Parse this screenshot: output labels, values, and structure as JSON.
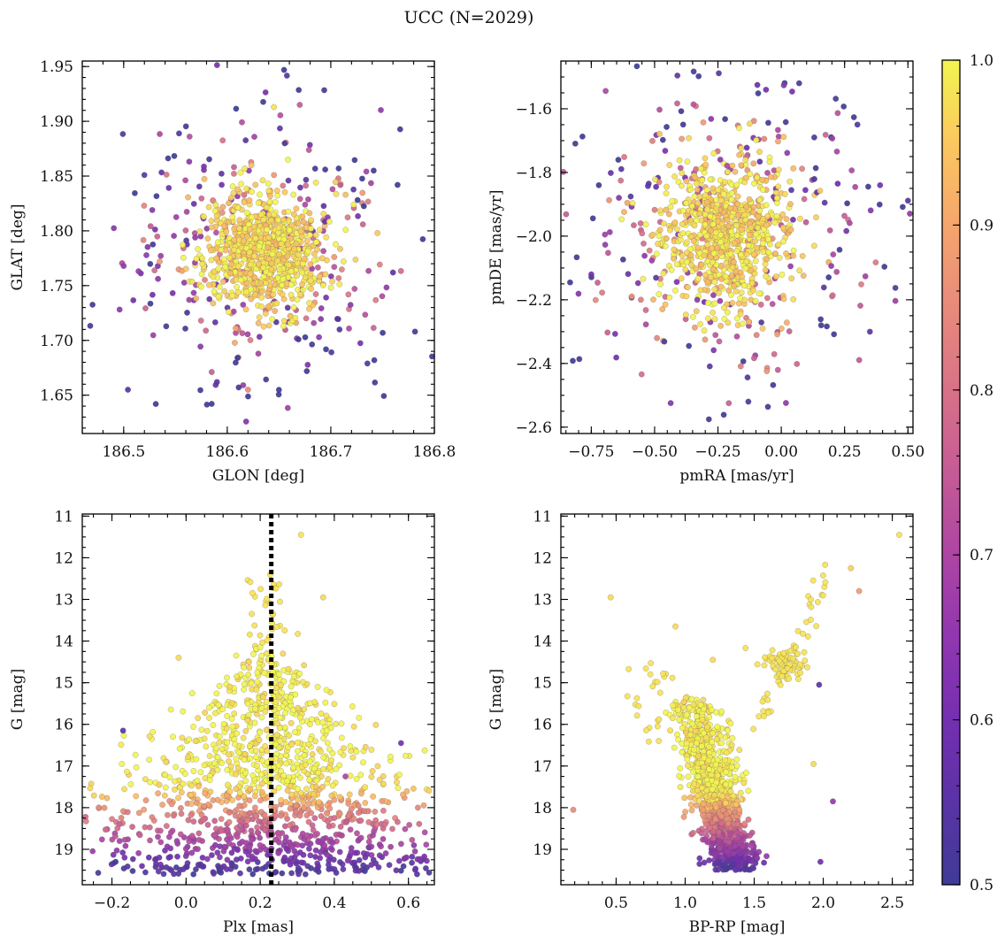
{
  "figure": {
    "title": "UCC (N=2029)",
    "colormap": "plasma",
    "n_members": 2029
  },
  "colorbar": {
    "min": 0.5,
    "max": 1.0,
    "ticks": [
      0.5,
      0.6,
      0.7,
      0.8,
      0.9,
      1.0
    ],
    "tick_labels": [
      "0.5",
      "0.6",
      "0.7",
      "0.8",
      "0.9",
      "1.0"
    ]
  },
  "chart_data": [
    {
      "id": "glon-glat",
      "type": "scatter",
      "title": "",
      "xlabel": "GLON [deg]",
      "ylabel": "GLAT [deg]",
      "xlim": [
        186.46,
        186.8
      ],
      "ylim": [
        1.615,
        1.955
      ],
      "xticks": [
        186.5,
        186.6,
        186.7,
        186.8
      ],
      "xtick_labels": [
        "186.5",
        "186.6",
        "186.7",
        "186.8"
      ],
      "yticks": [
        1.65,
        1.7,
        1.75,
        1.8,
        1.85,
        1.9,
        1.95
      ],
      "ytick_labels": [
        "1.65",
        "1.70",
        "1.75",
        "1.80",
        "1.85",
        "1.90",
        "1.95"
      ],
      "invert_y": false,
      "x_minor_step": 0.02,
      "y_minor_step": 0.01,
      "distribution": {
        "x_center": 186.635,
        "y_center": 1.783,
        "x_spread": 0.035,
        "y_spread": 0.032
      },
      "sample_points": [
        {
          "x": 186.645,
          "y": 1.913,
          "p": 0.98
        },
        {
          "x": 186.67,
          "y": 1.915,
          "p": 0.75
        },
        {
          "x": 186.5,
          "y": 1.768,
          "p": 0.65
        },
        {
          "x": 186.76,
          "y": 1.762,
          "p": 0.55
        },
        {
          "x": 186.59,
          "y": 1.662,
          "p": 0.55
        },
        {
          "x": 186.62,
          "y": 1.655,
          "p": 0.85
        },
        {
          "x": 186.52,
          "y": 1.851,
          "p": 0.55
        },
        {
          "x": 186.745,
          "y": 1.798,
          "p": 0.95
        }
      ]
    },
    {
      "id": "pmra-pmde",
      "type": "scatter",
      "title": "",
      "xlabel": "pmRA [mas/yr]",
      "ylabel": "pmDE [mas/yr]",
      "xlim": [
        -0.87,
        0.52
      ],
      "ylim": [
        -2.62,
        -1.45
      ],
      "xticks": [
        -0.75,
        -0.5,
        -0.25,
        0.0,
        0.25,
        0.5
      ],
      "xtick_labels": [
        "−0.75",
        "−0.50",
        "−0.25",
        "0.00",
        "0.25",
        "0.50"
      ],
      "yticks": [
        -2.6,
        -2.4,
        -2.2,
        -2.0,
        -1.8,
        -1.6
      ],
      "ytick_labels": [
        "−2.6",
        "−2.4",
        "−2.2",
        "−2.0",
        "−1.8",
        "−1.6"
      ],
      "invert_y": false,
      "x_minor_step": 0.05,
      "y_minor_step": 0.05,
      "distribution": {
        "x_center": -0.22,
        "y_center": -2.0,
        "x_spread": 0.16,
        "y_spread": 0.14
      },
      "sample_points": [
        {
          "x": -0.13,
          "y": -2.52,
          "p": 0.52
        },
        {
          "x": -0.06,
          "y": -1.54,
          "p": 0.6
        },
        {
          "x": -0.72,
          "y": -1.84,
          "p": 0.5
        },
        {
          "x": 0.39,
          "y": -1.84,
          "p": 0.6
        },
        {
          "x": 0.35,
          "y": -2.3,
          "p": 0.55
        },
        {
          "x": -0.75,
          "y": -2.12,
          "p": 0.6
        }
      ]
    },
    {
      "id": "plx-g",
      "type": "scatter",
      "title": "",
      "xlabel": "Plx [mas]",
      "ylabel": "G [mag]",
      "xlim": [
        -0.28,
        0.67
      ],
      "ylim": [
        19.85,
        10.95
      ],
      "xticks": [
        -0.2,
        0.0,
        0.2,
        0.4,
        0.6
      ],
      "xtick_labels": [
        "−0.2",
        "0.0",
        "0.2",
        "0.4",
        "0.6"
      ],
      "yticks": [
        11,
        12,
        13,
        14,
        15,
        16,
        17,
        18,
        19
      ],
      "ytick_labels": [
        "11",
        "12",
        "13",
        "14",
        "15",
        "16",
        "17",
        "18",
        "19"
      ],
      "invert_y": true,
      "x_minor_step": 0.05,
      "y_minor_step": 0.25,
      "reference_line": {
        "orientation": "vertical",
        "x": 0.23,
        "style": "dotted"
      },
      "sample_points": [
        {
          "x": 0.31,
          "y": 11.45,
          "p": 0.98
        },
        {
          "x": -0.17,
          "y": 16.15,
          "p": 0.55
        },
        {
          "x": 0.58,
          "y": 16.45,
          "p": 0.6
        },
        {
          "x": -0.02,
          "y": 14.4,
          "p": 0.97
        },
        {
          "x": 0.37,
          "y": 12.95,
          "p": 0.97
        },
        {
          "x": 0.43,
          "y": 17.25,
          "p": 0.7
        },
        {
          "x": 0.02,
          "y": 19.6,
          "p": 0.5
        },
        {
          "x": -0.19,
          "y": 19.3,
          "p": 0.5
        }
      ]
    },
    {
      "id": "bprp-g",
      "type": "scatter",
      "title": "",
      "xlabel": "BP-RP [mag]",
      "ylabel": "G [mag]",
      "xlim": [
        0.1,
        2.65
      ],
      "ylim": [
        19.85,
        10.95
      ],
      "xticks": [
        0.5,
        1.0,
        1.5,
        2.0,
        2.5
      ],
      "xtick_labels": [
        "0.5",
        "1.0",
        "1.5",
        "2.0",
        "2.5"
      ],
      "yticks": [
        11,
        12,
        13,
        14,
        15,
        16,
        17,
        18,
        19
      ],
      "ytick_labels": [
        "11",
        "12",
        "13",
        "14",
        "15",
        "16",
        "17",
        "18",
        "19"
      ],
      "invert_y": true,
      "x_minor_step": 0.1,
      "y_minor_step": 0.25,
      "sample_points": [
        {
          "x": 2.55,
          "y": 11.45,
          "p": 0.98
        },
        {
          "x": 2.2,
          "y": 12.25,
          "p": 0.96
        },
        {
          "x": 2.26,
          "y": 12.8,
          "p": 0.88
        },
        {
          "x": 0.46,
          "y": 12.95,
          "p": 0.97
        },
        {
          "x": 0.19,
          "y": 18.05,
          "p": 0.85
        },
        {
          "x": 1.97,
          "y": 15.05,
          "p": 0.55
        },
        {
          "x": 2.07,
          "y": 17.85,
          "p": 0.65
        },
        {
          "x": 1.98,
          "y": 19.3,
          "p": 0.6
        },
        {
          "x": 1.93,
          "y": 16.95,
          "p": 0.97
        },
        {
          "x": 0.93,
          "y": 13.65,
          "p": 0.97
        },
        {
          "x": 1.2,
          "y": 14.45,
          "p": 0.97
        }
      ]
    }
  ]
}
